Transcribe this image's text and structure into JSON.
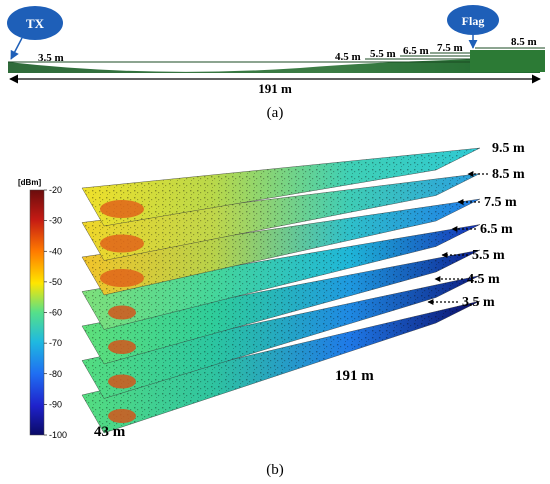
{
  "panel_a": {
    "tx_label": "TX",
    "flag_label": "Flag",
    "start_height": "3.5 m",
    "height_labels": [
      "4.5 m",
      "5.5 m",
      "6.5 m",
      "7.5 m",
      "8.5 m"
    ],
    "length_label": "191 m",
    "caption": "(a)"
  },
  "panel_b": {
    "colorbar": {
      "unit": "[dBm]",
      "ticks": [
        "-20",
        "-30",
        "-40",
        "-50",
        "-60",
        "-70",
        "-80",
        "-90",
        "-100"
      ],
      "colors": [
        "#6b0d0d",
        "#c41a14",
        "#ff7a00",
        "#ffe600",
        "#55e08a",
        "#1fb9e0",
        "#1f6ef2",
        "#1f22cc",
        "#0a0a66"
      ]
    },
    "height_labels": [
      "9.5 m",
      "8.5 m",
      "7.5 m",
      "6.5 m",
      "5.5 m",
      "4.5 m",
      "3.5 m"
    ],
    "length_label": "191 m",
    "width_label": "43 m",
    "caption": "(b)"
  }
}
